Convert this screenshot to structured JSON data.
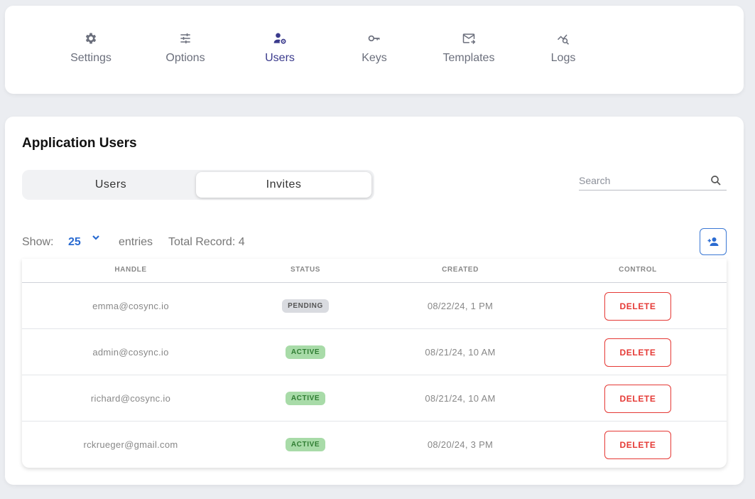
{
  "nav": {
    "items": [
      {
        "label": "Settings",
        "icon": "gear-icon"
      },
      {
        "label": "Options",
        "icon": "sliders-icon"
      },
      {
        "label": "Users",
        "icon": "user-gear-icon",
        "active": true
      },
      {
        "label": "Keys",
        "icon": "key-icon"
      },
      {
        "label": "Templates",
        "icon": "mail-forward-icon"
      },
      {
        "label": "Logs",
        "icon": "chart-search-icon"
      }
    ]
  },
  "page": {
    "title": "Application Users",
    "tabs": {
      "users": "Users",
      "invites": "Invites",
      "selected": "Invites"
    },
    "search": {
      "placeholder": "Search"
    }
  },
  "entries": {
    "show_label": "Show:",
    "count": "25",
    "entries_label": "entries",
    "total_label": "Total Record: 4"
  },
  "table": {
    "headers": {
      "handle": "HANDLE",
      "status": "STATUS",
      "created": "CREATED",
      "control": "CONTROL"
    },
    "rows": [
      {
        "handle": "emma@cosync.io",
        "status": "PENDING",
        "created": "08/22/24, 1 PM",
        "action": "DELETE"
      },
      {
        "handle": "admin@cosync.io",
        "status": "ACTIVE",
        "created": "08/21/24, 10 AM",
        "action": "DELETE"
      },
      {
        "handle": "richard@cosync.io",
        "status": "ACTIVE",
        "created": "08/21/24, 10 AM",
        "action": "DELETE"
      },
      {
        "handle": "rckrueger@gmail.com",
        "status": "ACTIVE",
        "created": "08/20/24, 3 PM",
        "action": "DELETE"
      }
    ]
  },
  "colors": {
    "active_nav": "#3a3a8c",
    "link_blue": "#2a6bd1",
    "danger": "#e53935",
    "active_badge_bg": "#a8dba8",
    "pending_badge_bg": "#d9dbe0"
  }
}
